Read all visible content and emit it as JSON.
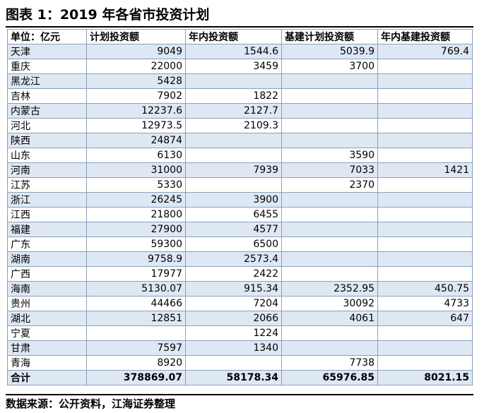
{
  "title": "图表 1：2019 年各省市投资计划",
  "table": {
    "headers": [
      "单位：亿元",
      "计划投资额",
      "年内投资额",
      "基建计划投资额",
      "年内基建投资额"
    ],
    "rows": [
      [
        "天津",
        "9049",
        "1544.6",
        "5039.9",
        "769.4"
      ],
      [
        "重庆",
        "22000",
        "3459",
        "3700",
        ""
      ],
      [
        "黑龙江",
        "5428",
        "",
        "",
        ""
      ],
      [
        "吉林",
        "7902",
        "1822",
        "",
        ""
      ],
      [
        "内蒙古",
        "12237.6",
        "2127.7",
        "",
        ""
      ],
      [
        "河北",
        "12973.5",
        "2109.3",
        "",
        ""
      ],
      [
        "陕西",
        "24874",
        "",
        "",
        ""
      ],
      [
        "山东",
        "6130",
        "",
        "3590",
        ""
      ],
      [
        "河南",
        "31000",
        "7939",
        "7033",
        "1421"
      ],
      [
        "江苏",
        "5330",
        "",
        "2370",
        ""
      ],
      [
        "浙江",
        "26245",
        "3900",
        "",
        ""
      ],
      [
        "江西",
        "21800",
        "6455",
        "",
        ""
      ],
      [
        "福建",
        "27900",
        "4577",
        "",
        ""
      ],
      [
        "广东",
        "59300",
        "6500",
        "",
        ""
      ],
      [
        "湖南",
        "9758.9",
        "2573.4",
        "",
        ""
      ],
      [
        "广西",
        "17977",
        "2422",
        "",
        ""
      ],
      [
        "海南",
        "5130.07",
        "915.34",
        "2352.95",
        "450.75"
      ],
      [
        "贵州",
        "44466",
        "7204",
        "30092",
        "4733"
      ],
      [
        "湖北",
        "12851",
        "2066",
        "4061",
        "647"
      ],
      [
        "宁夏",
        "",
        "1224",
        "",
        ""
      ],
      [
        "甘肃",
        "7597",
        "1340",
        "",
        ""
      ],
      [
        "青海",
        "8920",
        "",
        "7738",
        ""
      ]
    ],
    "total": [
      "合计",
      "378869.07",
      "58178.34",
      "65976.85",
      "8021.15"
    ]
  },
  "source": "数据来源：公开资料，江海证券整理",
  "colors": {
    "stripe": "#dde8f4",
    "border": "#8aa1b8",
    "rule": "#000000"
  }
}
